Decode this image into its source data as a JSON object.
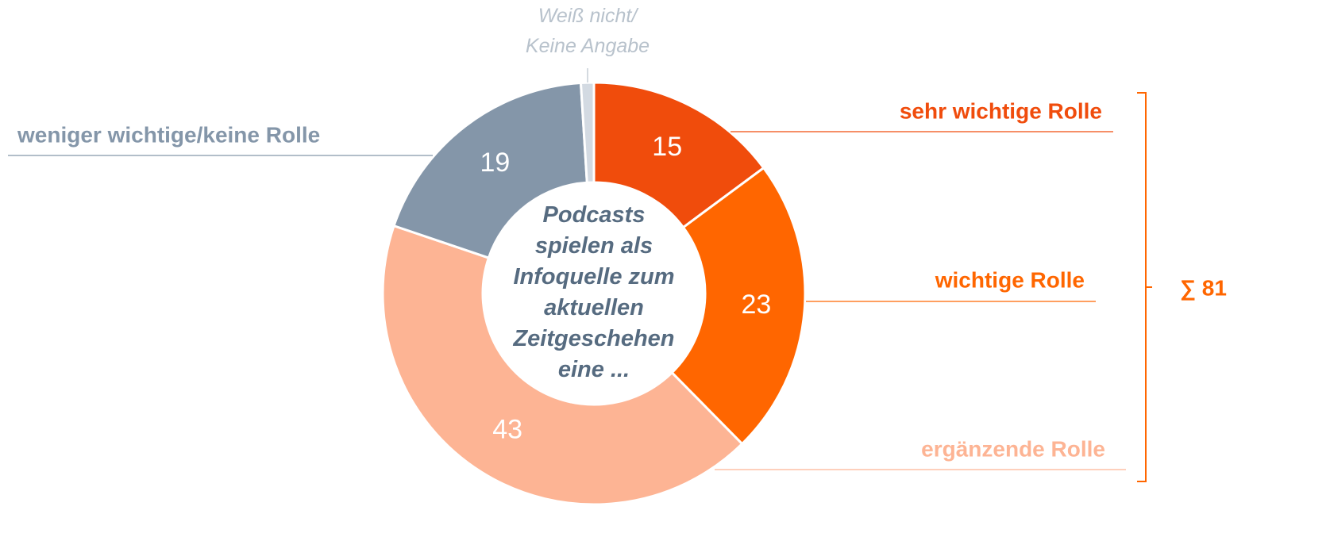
{
  "chart_data": {
    "type": "donut",
    "categories": [
      "sehr wichtige Rolle",
      "wichtige Rolle",
      "ergänzende Rolle",
      "weniger wichtige/keine Rolle",
      "Weiß nicht/\nKeine Angabe"
    ],
    "values": [
      15,
      23,
      43,
      19,
      1
    ],
    "value_labels": [
      "15",
      "23",
      "43",
      "19",
      null
    ],
    "colors": [
      "#f04c0c",
      "#ff6600",
      "#fdb494",
      "#8496a9",
      "#d3dae2"
    ],
    "label_colors": [
      "#f04c0c",
      "#ff6600",
      "#fdb494",
      "#8496a9",
      "#b8c2cc"
    ],
    "center_text": [
      "Podcasts",
      "spielen als",
      "Infoquelle zum",
      "aktuellen",
      "Zeitgeschehen",
      "eine ..."
    ],
    "annotation": "∑ 81"
  }
}
